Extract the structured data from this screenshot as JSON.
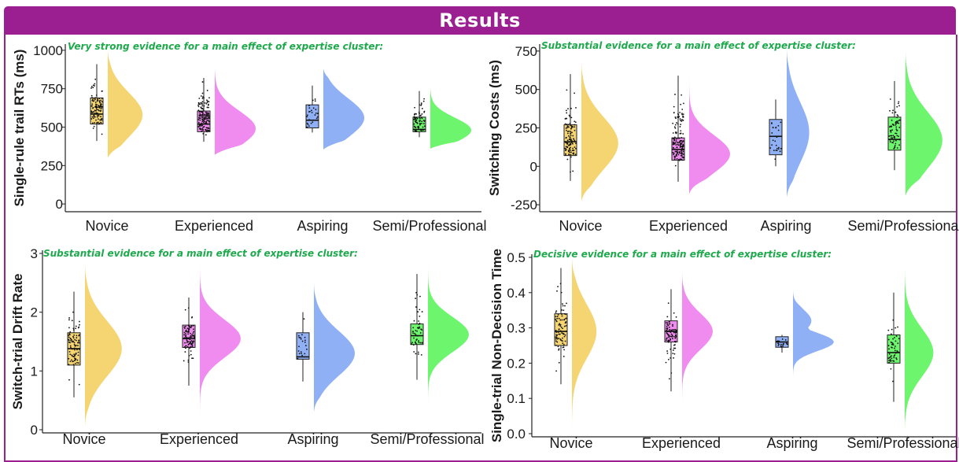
{
  "header": {
    "title": "Results"
  },
  "colors": {
    "header_bg": "#9b1f91",
    "annotation": "#1eaa4c",
    "novice": "#f5d572",
    "experienced": "#f08cf0",
    "aspiring": "#8fb0f5",
    "semi_professional": "#6ef56e"
  },
  "chart_data": [
    {
      "type": "box-violin",
      "id": "rt",
      "annotation": "Very strong evidence for a main effect of expertise cluster:",
      "ylabel": "Single-rule trail RTs (ms)",
      "ylim": [
        -30,
        1020
      ],
      "yticks": [
        0,
        250,
        500,
        750,
        1000
      ],
      "categories": [
        "Novice",
        "Experienced",
        "Aspiring",
        "Semi/Professional"
      ],
      "series": [
        {
          "name": "Novice",
          "min": 410,
          "q1": 520,
          "median": 585,
          "q3": 690,
          "max": 910,
          "n": 110,
          "density_min": 300,
          "density_max": 1000,
          "density_peak": 580,
          "density_width": 0.85
        },
        {
          "name": "Experienced",
          "min": 405,
          "q1": 470,
          "median": 520,
          "q3": 605,
          "max": 820,
          "n": 150,
          "density_min": 320,
          "density_max": 900,
          "density_peak": 490,
          "density_width": 1.0
        },
        {
          "name": "Aspiring",
          "min": 465,
          "q1": 495,
          "median": 545,
          "q3": 645,
          "max": 770,
          "n": 25,
          "density_min": 355,
          "density_max": 880,
          "density_peak": 560,
          "density_width": 1.0
        },
        {
          "name": "Semi/Professional",
          "min": 435,
          "q1": 470,
          "median": 485,
          "q3": 565,
          "max": 735,
          "n": 70,
          "density_min": 360,
          "density_max": 770,
          "density_peak": 480,
          "density_width": 1.0
        }
      ]
    },
    {
      "type": "box-violin",
      "id": "sc",
      "annotation": "Substantial evidence for a main effect of expertise cluster:",
      "ylabel": "Switching Costs (ms)",
      "ylim": [
        -275,
        775
      ],
      "yticks": [
        -250,
        0,
        250,
        500,
        750
      ],
      "categories": [
        "Novice",
        "Experienced",
        "Aspiring",
        "Semi/Professional"
      ],
      "series": [
        {
          "name": "Novice",
          "min": -95,
          "q1": 70,
          "median": 160,
          "q3": 270,
          "max": 600,
          "n": 110,
          "density_min": -230,
          "density_max": 690,
          "density_peak": 150,
          "density_width": 0.9
        },
        {
          "name": "Experienced",
          "min": -100,
          "q1": 40,
          "median": 110,
          "q3": 185,
          "max": 590,
          "n": 150,
          "density_min": -180,
          "density_max": 680,
          "density_peak": 80,
          "density_width": 1.0
        },
        {
          "name": "Aspiring",
          "min": 0,
          "q1": 75,
          "median": 195,
          "q3": 305,
          "max": 435,
          "n": 25,
          "density_min": -200,
          "density_max": 760,
          "density_peak": 220,
          "density_width": 0.55
        },
        {
          "name": "Semi/Professional",
          "min": -25,
          "q1": 105,
          "median": 175,
          "q3": 320,
          "max": 555,
          "n": 70,
          "density_min": -190,
          "density_max": 750,
          "density_peak": 170,
          "density_width": 0.9
        }
      ]
    },
    {
      "type": "box-violin",
      "id": "drift",
      "annotation": "Substantial evidence for a main effect of expertise cluster:",
      "ylabel": "Switch-trial Drift Rate",
      "ylim": [
        0,
        3
      ],
      "yticks": [
        0,
        1,
        2,
        3
      ],
      "categories": [
        "Novice",
        "Experienced",
        "Aspiring",
        "Semi/Professional"
      ],
      "series": [
        {
          "name": "Novice",
          "min": 0.55,
          "q1": 1.1,
          "median": 1.38,
          "q3": 1.65,
          "max": 2.35,
          "n": 90,
          "density_min": 0.05,
          "density_max": 2.85,
          "density_peak": 1.38,
          "density_width": 0.9
        },
        {
          "name": "Experienced",
          "min": 0.75,
          "q1": 1.4,
          "median": 1.55,
          "q3": 1.78,
          "max": 2.25,
          "n": 95,
          "density_min": 0.0,
          "density_max": 3.0,
          "density_peak": 1.55,
          "density_width": 1.0
        },
        {
          "name": "Aspiring",
          "min": 0.82,
          "q1": 1.2,
          "median": 1.24,
          "q3": 1.65,
          "max": 2.0,
          "n": 20,
          "density_min": 0.3,
          "density_max": 2.5,
          "density_peak": 1.3,
          "density_width": 1.0
        },
        {
          "name": "Semi/Professional",
          "min": 0.85,
          "q1": 1.45,
          "median": 1.6,
          "q3": 1.8,
          "max": 2.65,
          "n": 50,
          "density_min": 0.1,
          "density_max": 3.0,
          "density_peak": 1.62,
          "density_width": 1.0
        }
      ]
    },
    {
      "type": "box-violin",
      "id": "ndt",
      "annotation": "Decisive evidence for a main effect of expertise cluster:",
      "ylabel": "Single-trial Non-Decision Time",
      "ylim": [
        0,
        0.5
      ],
      "yticks": [
        0.0,
        0.1,
        0.2,
        0.3,
        0.4,
        0.5
      ],
      "categories": [
        "Novice",
        "Experienced",
        "Aspiring",
        "Semi/Professional"
      ],
      "series": [
        {
          "name": "Novice",
          "min": 0.14,
          "q1": 0.25,
          "median": 0.29,
          "q3": 0.34,
          "max": 0.47,
          "n": 90,
          "density_min": 0.0,
          "density_max": 0.5,
          "density_peak": 0.29,
          "density_width": 0.6
        },
        {
          "name": "Experienced",
          "min": 0.12,
          "q1": 0.26,
          "median": 0.29,
          "q3": 0.32,
          "max": 0.41,
          "n": 95,
          "density_min": 0.0,
          "density_max": 0.47,
          "density_peak": 0.29,
          "density_width": 0.75
        },
        {
          "name": "Aspiring",
          "min": 0.23,
          "q1": 0.245,
          "median": 0.26,
          "q3": 0.275,
          "max": 0.28,
          "n": 20,
          "density_min": 0.0,
          "density_max": 0.41,
          "density_peak": 0.26,
          "density_width": 1.0,
          "secondary_peak": 0.32
        },
        {
          "name": "Semi/Professional",
          "min": 0.09,
          "q1": 0.2,
          "median": 0.23,
          "q3": 0.28,
          "max": 0.4,
          "n": 50,
          "density_min": 0.0,
          "density_max": 0.49,
          "density_peak": 0.23,
          "density_width": 0.7
        }
      ]
    }
  ]
}
